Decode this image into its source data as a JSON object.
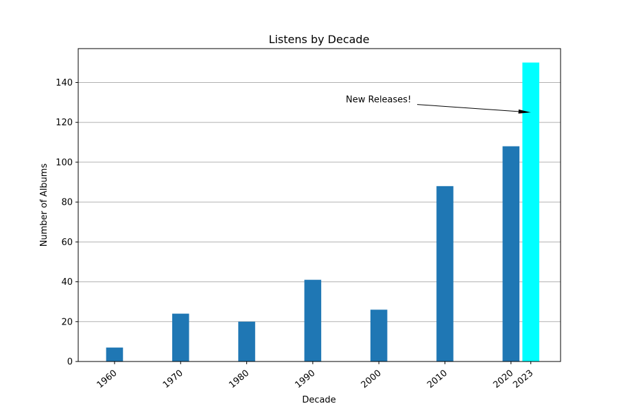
{
  "chart_data": {
    "type": "bar",
    "title": "Listens by Decade",
    "xlabel": "Decade",
    "ylabel": "Number of Albums",
    "x": [
      1960,
      1970,
      1980,
      1990,
      2000,
      2010,
      2020,
      2023
    ],
    "x_tick_labels": [
      "1960",
      "1970",
      "1980",
      "1990",
      "2000",
      "2010",
      "2020",
      "2023"
    ],
    "values": [
      7,
      24,
      20,
      41,
      26,
      88,
      108,
      150
    ],
    "bar_colors": [
      "#1f77b4",
      "#1f77b4",
      "#1f77b4",
      "#1f77b4",
      "#1f77b4",
      "#1f77b4",
      "#1f77b4",
      "#00ffff"
    ],
    "ylim": [
      0,
      157
    ],
    "xlim": [
      1954.5,
      2027.5
    ],
    "y_ticks": [
      0,
      20,
      40,
      60,
      80,
      100,
      120,
      140
    ],
    "grid": "y",
    "annotation": {
      "text": "New Releases!",
      "text_x": 1995,
      "text_y": 130,
      "arrow_x": 2023,
      "arrow_y": 125
    }
  }
}
